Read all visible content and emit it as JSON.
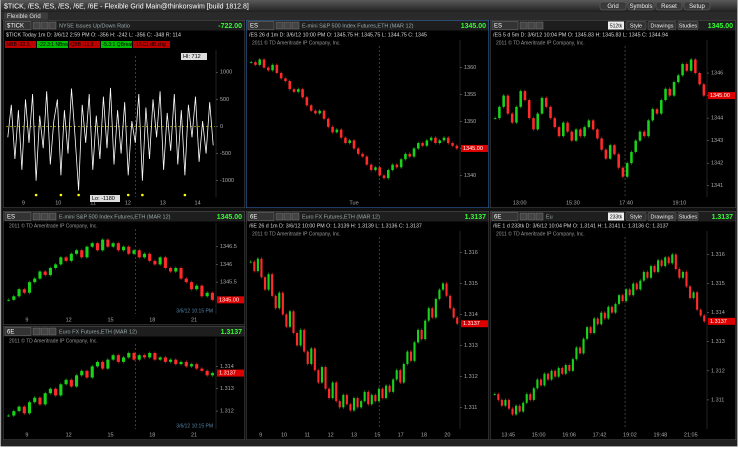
{
  "window": {
    "title": "$TICK, /ES, /ES, /ES, /6E, /6E - Flexible Grid Main@thinkorswim [build 1812.8]",
    "buttons": [
      "Grid",
      "Symbols",
      "Reset",
      "Setup"
    ],
    "tab": "Flexible Grid"
  },
  "toolbar": [
    "Style",
    "Drawings",
    "Studies"
  ],
  "copyright": "2011 © TD Ameritrade IP Company, Inc.",
  "panels": [
    {
      "type": "line",
      "symbol": "$TICK",
      "description": "NYSE Issues Up/Down Ratio",
      "price": "-722.00",
      "info": "$TICK Today 1m  D: 3/6/12 2:59 PM  O: -356  H: -242  L: -356  C: -348  R: 114",
      "studies": [
        "NBB -22.5",
        "-22.3:1 NBreath",
        "QBB -11.8",
        "-5.3:1 QBreath",
        "-16.01 dB.chg"
      ],
      "tags": [
        "HI: 712",
        "Lo: -1180"
      ],
      "ylim": [
        -1300,
        1300
      ],
      "yticks": [
        1000,
        500,
        0,
        -500,
        -1000
      ],
      "xticks": [
        "9",
        "10",
        "11",
        "12",
        "13",
        "14"
      ],
      "values": [
        -200,
        400,
        -600,
        300,
        -800,
        500,
        -300,
        600,
        -1000,
        200,
        -400,
        650,
        -700,
        100,
        500,
        -900,
        300,
        -500,
        700,
        -200,
        -1180,
        400,
        -300,
        600,
        -800,
        200,
        -600,
        550,
        -400,
        712,
        -700,
        300,
        -500,
        450,
        -900,
        100,
        -300,
        600,
        -1000,
        350,
        -600,
        500,
        -200,
        650,
        -800,
        250,
        -450,
        600,
        -700,
        300,
        -900,
        400,
        -200,
        550,
        -650,
        100,
        -500,
        450,
        -348
      ]
    },
    {
      "type": "candle",
      "symbol": "ES",
      "description": "E-mini S&P 500 Index Futures,ETH (MAR 12)",
      "price": "1345.00",
      "info": "/ES 26 d 1m  D: 3/6/12 10:00 PM  O: 1345.75  H: 1345.75  L: 1344.75  C: 1345",
      "ylim": [
        1336,
        1364
      ],
      "yticks": [
        1360,
        1355,
        1350,
        1345,
        1340
      ],
      "xticks": [
        "Tue"
      ],
      "values": [
        1361,
        1360.5,
        1361.5,
        1360,
        1359.5,
        1360.5,
        1359,
        1358,
        1357.5,
        1356,
        1355.5,
        1356,
        1354.5,
        1353,
        1352,
        1351.5,
        1352,
        1350.5,
        1349,
        1348,
        1348.5,
        1347,
        1346,
        1346.5,
        1345,
        1344,
        1343.5,
        1342,
        1341,
        1341.5,
        1340,
        1339.5,
        1341,
        1342,
        1341.5,
        1343,
        1344,
        1343.5,
        1345,
        1346,
        1345.5,
        1346.5,
        1347,
        1346,
        1346.5,
        1347,
        1346,
        1345.5,
        1345
      ]
    },
    {
      "type": "candle",
      "symbol": "ES",
      "interval": "512tk",
      "toolbar": true,
      "price": "1345.00",
      "info": "/ES 5 d 5m  D: 3/6/12 10:04 PM  O: 1345.83  H: 1345.83  L: 1345  C: 1344.94",
      "ylim": [
        1340.5,
        1347.2
      ],
      "yticks": [
        1346,
        1345,
        1344,
        1343,
        1342,
        1341
      ],
      "xticks": [
        "13:00",
        "15:30",
        "17:40",
        "19:10"
      ],
      "values": [
        1344,
        1344.5,
        1345,
        1344.2,
        1343.8,
        1344.5,
        1345.2,
        1344.8,
        1344,
        1343.5,
        1344.2,
        1344.9,
        1344.5,
        1344,
        1343.6,
        1343.2,
        1343.8,
        1343.4,
        1343,
        1343.5,
        1343.2,
        1343.6,
        1343.9,
        1343.5,
        1343.1,
        1342.6,
        1342.2,
        1342.8,
        1342.4,
        1341.8,
        1341.4,
        1342,
        1342.5,
        1343,
        1343.4,
        1343.2,
        1343.9,
        1344.4,
        1344.2,
        1344.8,
        1345.3,
        1345,
        1345.6,
        1345.9,
        1346.4,
        1346.1,
        1346.6,
        1346,
        1345.5,
        1345
      ]
    },
    {
      "type": "candle",
      "symbol": "ES",
      "description": "E-mini S&P 500 Index Futures,ETH (MAR 12)",
      "price": "1345.00",
      "stamp": "3/6/12 10:15 PM",
      "ylim": [
        1344.6,
        1347
      ],
      "yticks": [
        1346.5,
        1346,
        1345.5
      ],
      "xticks": [
        "9",
        "12",
        "15",
        "18",
        "21"
      ],
      "values": [
        1345,
        1345.1,
        1345.3,
        1345.2,
        1345.5,
        1345.6,
        1345.8,
        1345.7,
        1345.9,
        1346,
        1346.2,
        1346.1,
        1346.3,
        1346.4,
        1346.2,
        1346.5,
        1346.6,
        1346.4,
        1346.7,
        1346.5,
        1346.6,
        1346.4,
        1346.5,
        1346.3,
        1346.4,
        1346.2,
        1346.3,
        1346.1,
        1346,
        1346.2,
        1345.9,
        1345.8,
        1345.9,
        1345.6,
        1345.5,
        1345.3,
        1345.4,
        1345.1,
        1345.2,
        1345
      ]
    },
    {
      "type": "candle",
      "symbol": "6E",
      "description": "Euro FX Futures,ETH (MAR 12)",
      "price": "1.3137",
      "stamp": "3/6/12 10:15 PM",
      "ylim": [
        1.3112,
        1.315
      ],
      "yticks": [
        1.314,
        1.313,
        1.312
      ],
      "xticks": [
        "9",
        "12",
        "15",
        "18",
        "21"
      ],
      "values": [
        1.3118,
        1.312,
        1.3122,
        1.3119,
        1.3124,
        1.3126,
        1.3123,
        1.3128,
        1.313,
        1.3127,
        1.3132,
        1.3134,
        1.3131,
        1.3136,
        1.3138,
        1.3135,
        1.314,
        1.3142,
        1.3139,
        1.3143,
        1.3145,
        1.3142,
        1.3144,
        1.3146,
        1.3143,
        1.3145,
        1.3144,
        1.3146,
        1.3143,
        1.3144,
        1.3142,
        1.3143,
        1.3141,
        1.3142,
        1.314,
        1.3141,
        1.3139,
        1.3138,
        1.3136,
        1.3137
      ]
    },
    {
      "type": "candle",
      "symbol": "6E",
      "description": "Euro FX Futures,ETH (MAR 12)",
      "price": "1.3137",
      "info": "/6E 26 d 1m  D: 3/6/12 10:00 PM  O: 1.3139  H: 1.3139  L: 1.3136  C: 1.3137",
      "ylim": [
        1.3103,
        1.3165
      ],
      "yticks": [
        1.316,
        1.315,
        1.314,
        1.313,
        1.312,
        1.311
      ],
      "xticks": [
        "9",
        "10",
        "11",
        "12",
        "13",
        "15",
        "17",
        "18",
        "20"
      ],
      "values": [
        1.3157,
        1.3154,
        1.3158,
        1.3152,
        1.3148,
        1.3153,
        1.3146,
        1.3142,
        1.3147,
        1.314,
        1.3136,
        1.3141,
        1.3134,
        1.313,
        1.3135,
        1.3128,
        1.3124,
        1.3129,
        1.3122,
        1.3118,
        1.3123,
        1.3116,
        1.3113,
        1.3118,
        1.3112,
        1.311,
        1.3114,
        1.3111,
        1.3109,
        1.3113,
        1.311,
        1.3112,
        1.3115,
        1.3111,
        1.3114,
        1.3112,
        1.3116,
        1.3113,
        1.3117,
        1.3115,
        1.3119,
        1.3122,
        1.3118,
        1.3124,
        1.3128,
        1.3125,
        1.3131,
        1.3135,
        1.3132,
        1.3138,
        1.3142,
        1.3139,
        1.3145,
        1.3148,
        1.315,
        1.3146,
        1.3142,
        1.3139,
        1.3137
      ]
    },
    {
      "type": "candle",
      "symbol": "6E",
      "description": "Eu",
      "interval": "233tk",
      "toolbar": true,
      "price": "1.3137",
      "info": "/6E 1 d 233tk  D: 3/6/12 10:04 PM  O: 1.3141  H: 1.3141  L: 1.3136  C: 1.3137",
      "ylim": [
        1.31,
        1.3166
      ],
      "yticks": [
        1.316,
        1.315,
        1.314,
        1.313,
        1.312,
        1.311
      ],
      "xticks": [
        "13:45",
        "15:00",
        "16:06",
        "17:42",
        "19:02",
        "19:48",
        "21:05"
      ],
      "values": [
        1.3112,
        1.311,
        1.3108,
        1.311,
        1.3107,
        1.3105,
        1.3108,
        1.3106,
        1.3109,
        1.3112,
        1.311,
        1.3114,
        1.3117,
        1.3115,
        1.3119,
        1.3117,
        1.312,
        1.3118,
        1.3121,
        1.3119,
        1.3122,
        1.312,
        1.3124,
        1.3128,
        1.3126,
        1.3131,
        1.3135,
        1.3133,
        1.3138,
        1.3136,
        1.314,
        1.3138,
        1.3142,
        1.314,
        1.3143,
        1.3146,
        1.3144,
        1.3148,
        1.3146,
        1.315,
        1.3148,
        1.3151,
        1.3154,
        1.3152,
        1.3156,
        1.3154,
        1.3158,
        1.3156,
        1.3159,
        1.3157,
        1.316,
        1.3155,
        1.3152,
        1.3154,
        1.3149,
        1.3145,
        1.3147,
        1.3141,
        1.3139,
        1.3137
      ]
    }
  ]
}
